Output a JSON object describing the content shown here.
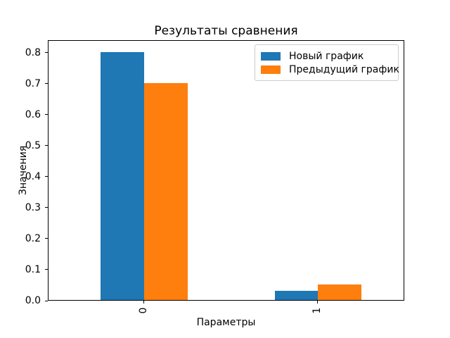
{
  "figure": {
    "background": "#ffffff",
    "text_color": "#000000",
    "legend_border_color": "#cccccc"
  },
  "chart_data": {
    "type": "bar",
    "title": "Результаты сравнения",
    "xlabel": "Параметры",
    "ylabel": "Значения",
    "categories": [
      "0",
      "1"
    ],
    "series": [
      {
        "name": "Новый график",
        "color": "#1f77b4",
        "values": [
          0.8,
          0.03
        ]
      },
      {
        "name": "Предыдущий график",
        "color": "#ff7f0e",
        "values": [
          0.7,
          0.05
        ]
      }
    ],
    "yticks": [
      0.0,
      0.1,
      0.2,
      0.3,
      0.4,
      0.5,
      0.6,
      0.7,
      0.8
    ],
    "ylim": [
      0,
      0.84
    ],
    "xlim": [
      -0.55,
      1.5
    ],
    "bar_width": 0.25,
    "grid": false,
    "legend_position": "upper right",
    "xtick_rotation": 90
  }
}
